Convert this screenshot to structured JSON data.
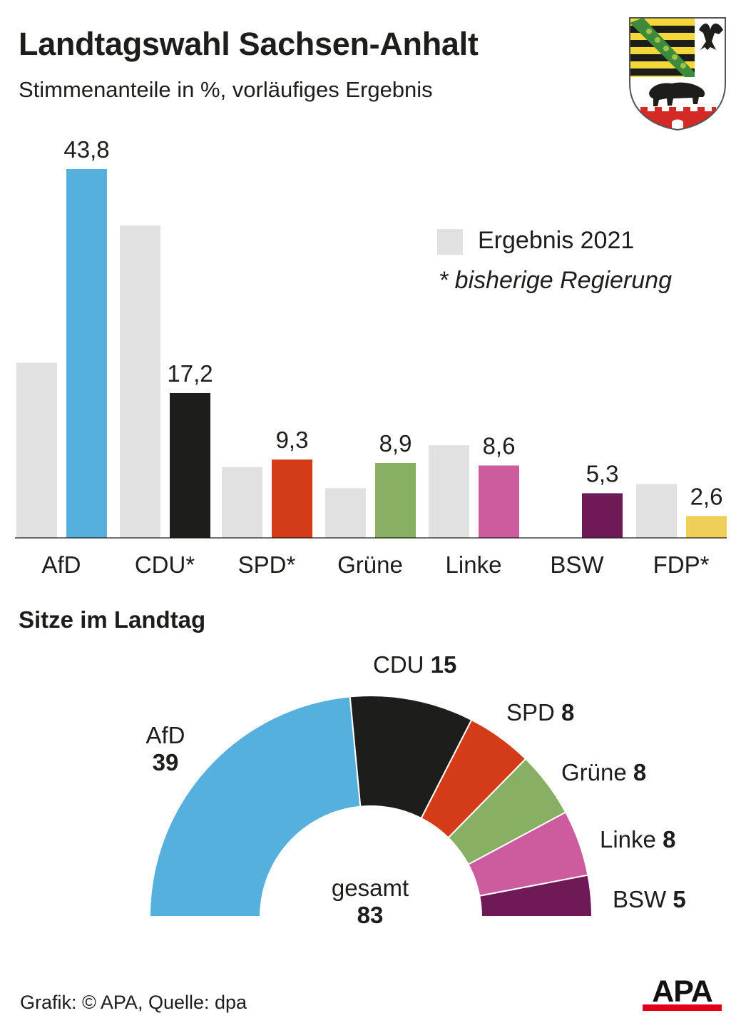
{
  "header": {
    "title": "Landtagswahl Sachsen-Anhalt",
    "subtitle": "Stimmenanteile in %, vorläufiges Ergebnis"
  },
  "legend": {
    "previous_label": "Ergebnis 2021",
    "note": "* bisherige Regierung",
    "previous_color": "#e1e1e1"
  },
  "chart_data": [
    {
      "type": "bar",
      "title": "Landtagswahl Sachsen-Anhalt",
      "subtitle": "Stimmenanteile in %, vorläufiges Ergebnis",
      "categories": [
        "AfD",
        "CDU*",
        "SPD*",
        "Grüne",
        "Linke",
        "BSW",
        "FDP*"
      ],
      "series": [
        {
          "name": "Ergebnis 2021",
          "values": [
            20.8,
            37.1,
            8.4,
            5.9,
            11.0,
            null,
            6.4
          ],
          "color": "#e1e1e1"
        },
        {
          "values": [
            43.8,
            17.2,
            9.3,
            8.9,
            8.6,
            5.3,
            2.6
          ],
          "value_labels": [
            "43,8",
            "17,2",
            "9,3",
            "8,9",
            "8,6",
            "5,3",
            "2,6"
          ],
          "colors": [
            "#55b0dd",
            "#1d1d1b",
            "#d43c19",
            "#88b062",
            "#cc5c9e",
            "#6f1957",
            "#f0cf58"
          ]
        }
      ],
      "ylim": [
        0,
        43.8
      ],
      "grid": false,
      "legend_position": "top-right"
    },
    {
      "type": "pie",
      "variant": "half-donut",
      "title": "Sitze im Landtag",
      "categories": [
        "AfD",
        "CDU",
        "SPD",
        "Grüne",
        "Linke",
        "BSW"
      ],
      "values": [
        39,
        15,
        8,
        8,
        8,
        5
      ],
      "colors": [
        "#55b0dd",
        "#1d1d1b",
        "#d43c19",
        "#88b062",
        "#cc5c9e",
        "#6f1957"
      ],
      "total_label": "gesamt",
      "total": 83
    }
  ],
  "seats_labels": {
    "afd_name": "AfD",
    "afd_seats": "39",
    "cdu_name": "CDU",
    "cdu_seats": "15",
    "spd_name": "SPD",
    "spd_seats": "8",
    "gruene_name": "Grüne",
    "gruene_seats": "8",
    "linke_name": "Linke",
    "linke_seats": "8",
    "bsw_name": "BSW",
    "bsw_seats": "5",
    "total_label": "gesamt",
    "total_seats": "83"
  },
  "footer": {
    "source": "Grafik: © APA, Quelle: dpa",
    "logo_text": "APA"
  },
  "colors": {
    "apa_red": "#e2001a",
    "text": "#1d1d1b"
  },
  "icons": {
    "coat_of_arms": "saxony-anhalt-coat-of-arms-icon"
  }
}
